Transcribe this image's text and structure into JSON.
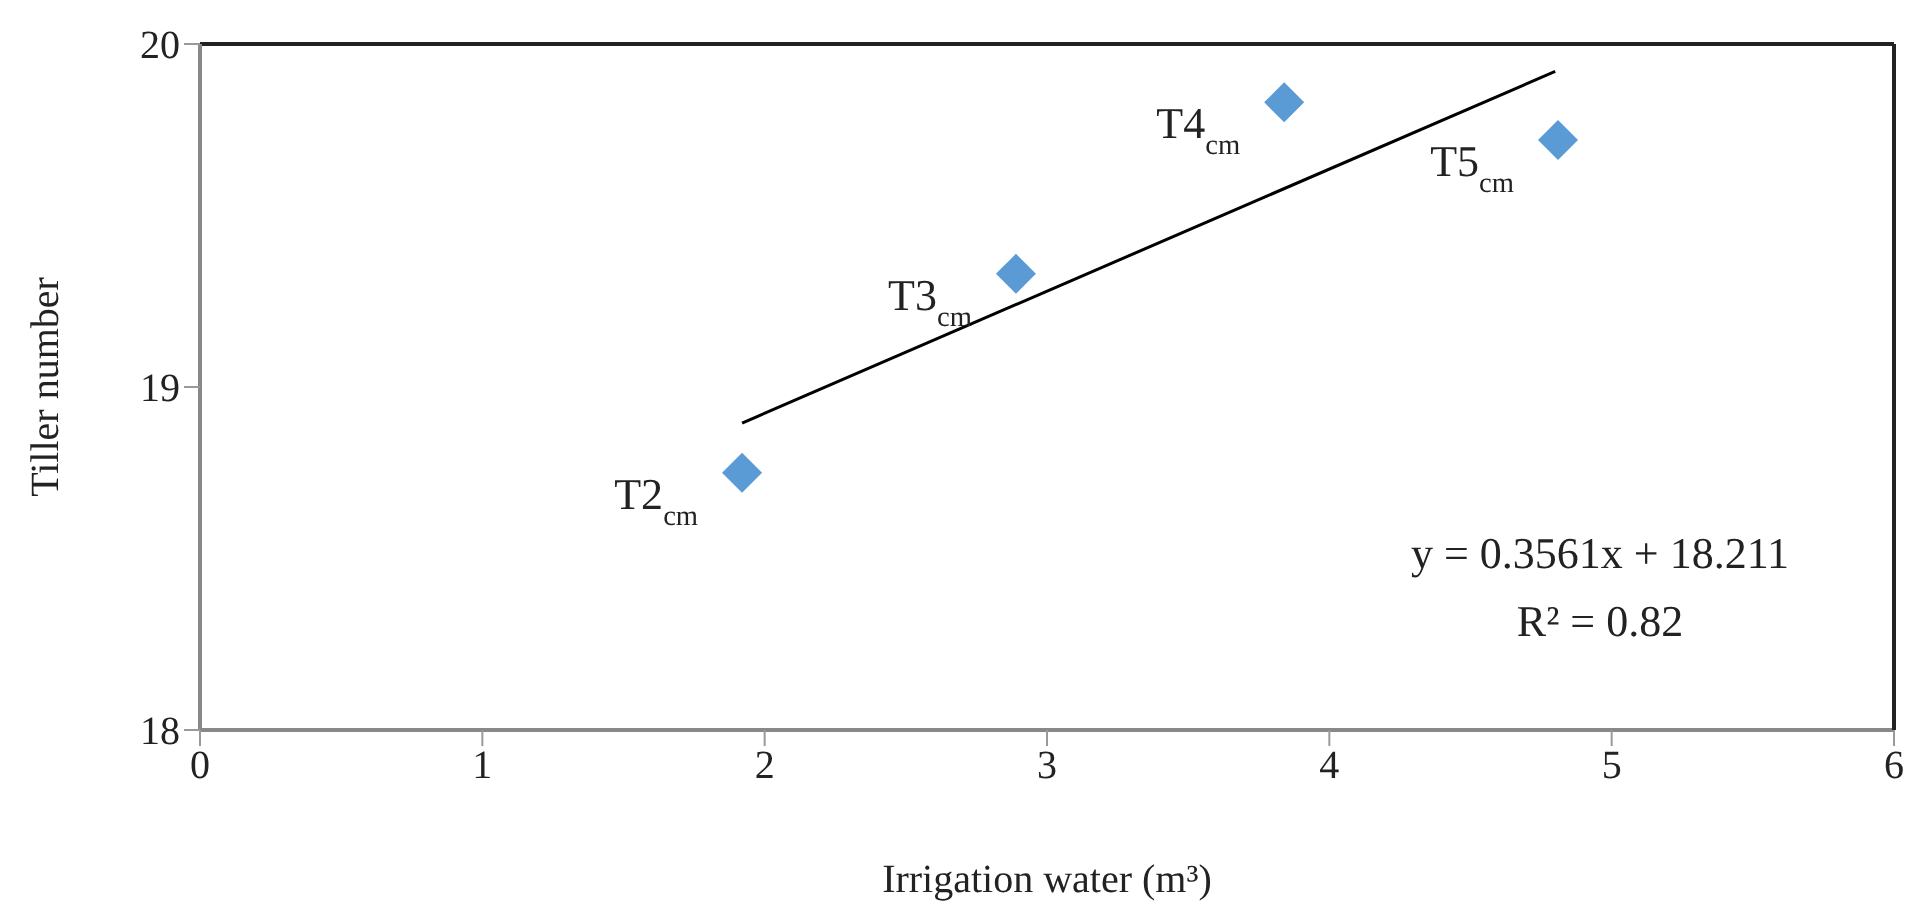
{
  "chart_data": {
    "type": "scatter",
    "xlabel": "Irrigation water (m³)",
    "ylabel": "Tiller number",
    "xlim": [
      0,
      6
    ],
    "xticks": [
      0,
      1,
      2,
      3,
      4,
      5,
      6
    ],
    "ylim": [
      18,
      20
    ],
    "yticks": [
      18,
      19,
      20
    ],
    "grid": false,
    "legend": false,
    "marker": "diamond",
    "series": [
      {
        "type": "scatter",
        "color": "#5b9bd5",
        "x": [
          1.92,
          2.89,
          3.84,
          4.81
        ],
        "values": [
          18.75,
          19.33,
          19.83,
          19.72
        ]
      },
      {
        "type": "line",
        "color": "#000000",
        "marker": "none",
        "line_style": "solid",
        "x": [
          1.92,
          4.8
        ],
        "values": [
          18.895,
          19.92
        ]
      }
    ],
    "annotations": [
      {
        "text": "T2$_{cm}$",
        "x": 1.92,
        "y": 18.75
      },
      {
        "text": "T3$_{cm}$",
        "x": 2.89,
        "y": 19.33
      },
      {
        "text": "T4$_{cm}$",
        "x": 3.84,
        "y": 19.83
      },
      {
        "text": "T5$_{cm}$",
        "x": 4.81,
        "y": 19.72
      },
      "y = 0.3561x + 18.211",
      "R² = 0.82"
    ]
  }
}
